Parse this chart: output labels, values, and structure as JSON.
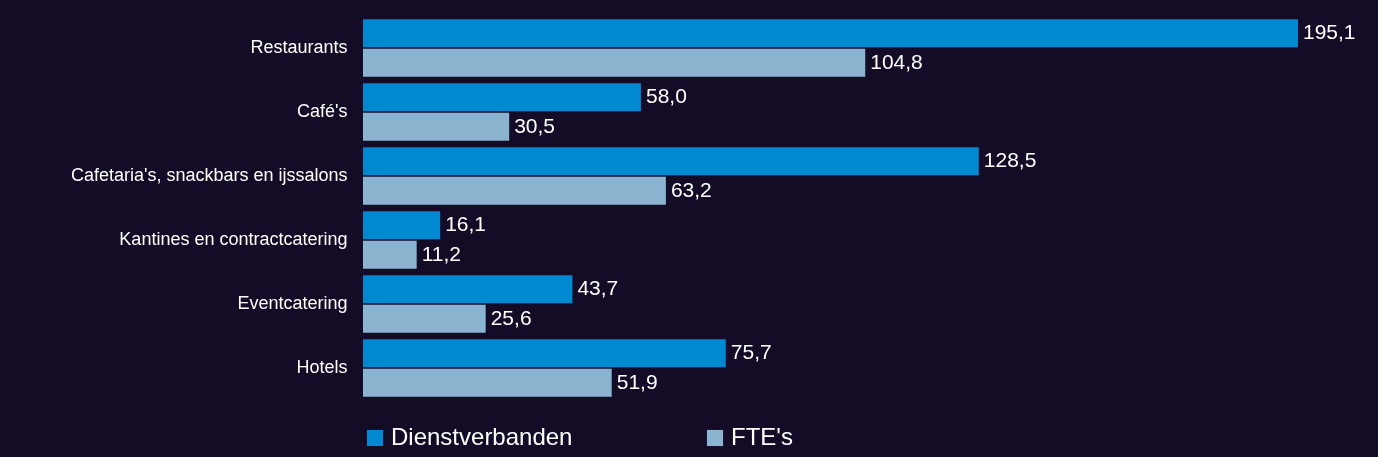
{
  "chart_data": {
    "type": "bar",
    "orientation": "horizontal",
    "categories": [
      "Restaurants",
      "Café's",
      "Cafetaria's, snackbars en ijssalons",
      "Kantines en contractcatering",
      "Eventcatering",
      "Hotels"
    ],
    "series": [
      {
        "name": "Dienstverbanden",
        "color": "#0088d1",
        "values": [
          195.1,
          58.0,
          128.5,
          16.1,
          43.7,
          75.7
        ],
        "value_labels": [
          "195,1",
          "58,0",
          "128,5",
          "16,1",
          "43,7",
          "75,7"
        ]
      },
      {
        "name": "FTE's",
        "color": "#8ab4cf",
        "values": [
          104.8,
          30.5,
          63.2,
          11.2,
          25.6,
          51.9
        ],
        "value_labels": [
          "104,8",
          "30,5",
          "63,2",
          "11,2",
          "25,6",
          "51,9"
        ]
      }
    ],
    "legend": "bottom"
  }
}
